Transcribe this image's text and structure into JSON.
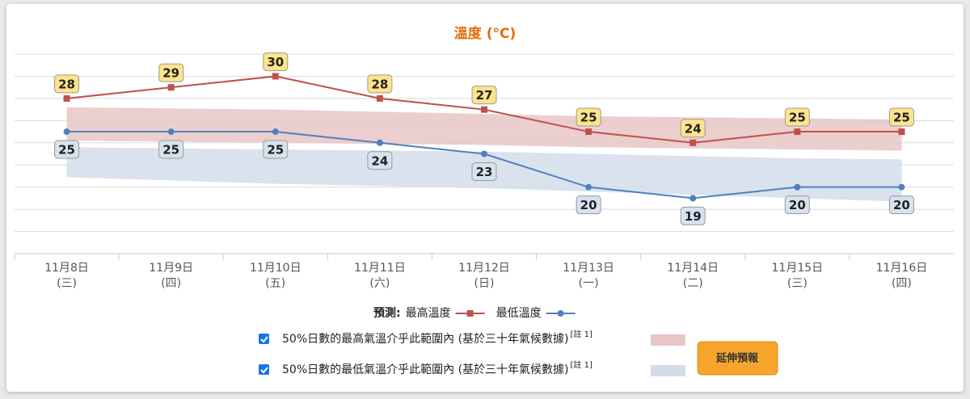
{
  "chart_data": {
    "type": "line",
    "title": "溫度 (°C)",
    "categories": [
      "11月8日",
      "11月9日",
      "11月10日",
      "11月11日",
      "11月12日",
      "11月13日",
      "11月14日",
      "11月15日",
      "11月16日"
    ],
    "weekdays": [
      "(三)",
      "(四)",
      "(五)",
      "(六)",
      "(日)",
      "(一)",
      "(二)",
      "(三)",
      "(四)"
    ],
    "legend_title": "預測:",
    "series": [
      {
        "name": "最高溫度",
        "color": "#c0504d",
        "marker": "square",
        "label_color": "#fde48a",
        "values": [
          28,
          29,
          30,
          28,
          27,
          25,
          24,
          25,
          25
        ]
      },
      {
        "name": "最低溫度",
        "color": "#4f81bd",
        "marker": "circle",
        "label_color": "#d6e2f0",
        "values": [
          25,
          25,
          25,
          24,
          23,
          20,
          19,
          20,
          20
        ]
      }
    ],
    "bands": [
      {
        "name": "50%日數的最高氣溫介乎此範圍內 (基於三十年氣候數據)",
        "note": "[註 1]",
        "color": "#e8c6c6",
        "upper": [
          27.2,
          27.1,
          27.0,
          26.8,
          26.6,
          26.4,
          26.3,
          26.2,
          26.1
        ],
        "lower": [
          24.2,
          24.1,
          24.0,
          23.9,
          23.8,
          23.6,
          23.5,
          23.4,
          23.3
        ]
      },
      {
        "name": "50%日數的最低氣溫介乎此範圍內 (基於三十年氣候數據)",
        "note": "[註 1]",
        "color": "#d3ddea",
        "upper": [
          23.6,
          23.5,
          23.4,
          23.3,
          23.2,
          23.0,
          22.8,
          22.6,
          22.5
        ],
        "lower": [
          20.9,
          20.6,
          20.3,
          20.1,
          19.9,
          19.6,
          19.3,
          19.0,
          18.7
        ]
      }
    ],
    "ylim": [
      14,
      32
    ],
    "yticks": [
      14,
      16,
      18,
      20,
      22,
      24,
      26,
      28,
      30,
      32
    ],
    "grid": true
  },
  "button": "延伸預報"
}
